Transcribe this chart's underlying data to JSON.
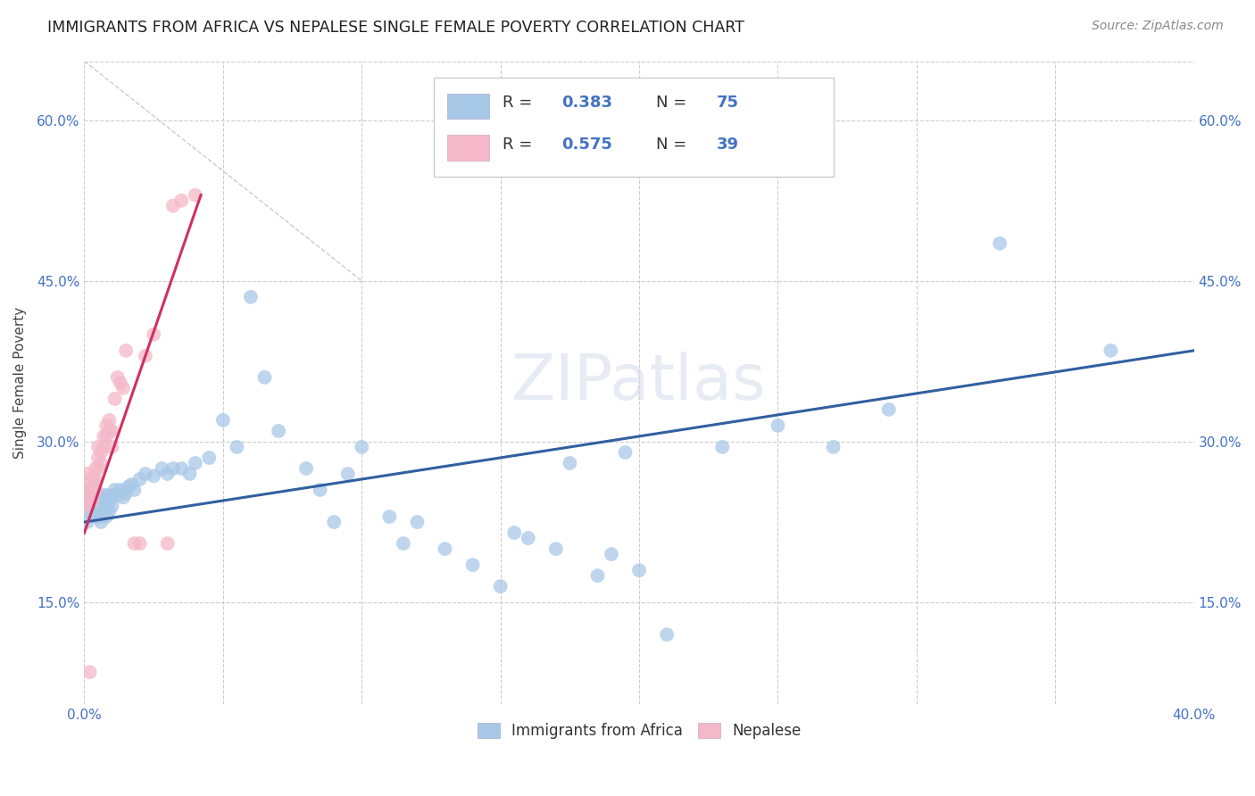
{
  "title": "IMMIGRANTS FROM AFRICA VS NEPALESE SINGLE FEMALE POVERTY CORRELATION CHART",
  "source": "Source: ZipAtlas.com",
  "ylabel": "Single Female Poverty",
  "xlim": [
    0.0,
    0.4
  ],
  "ylim": [
    0.055,
    0.655
  ],
  "xticks": [
    0.0,
    0.05,
    0.1,
    0.15,
    0.2,
    0.25,
    0.3,
    0.35,
    0.4
  ],
  "xticklabels": [
    "0.0%",
    "",
    "",
    "",
    "",
    "",
    "",
    "",
    "40.0%"
  ],
  "yticks": [
    0.15,
    0.3,
    0.45,
    0.6
  ],
  "yticklabels": [
    "15.0%",
    "30.0%",
    "45.0%",
    "60.0%"
  ],
  "legend_labels": [
    "Immigrants from Africa",
    "Nepalese"
  ],
  "R_blue": "0.383",
  "N_blue": "75",
  "R_pink": "0.575",
  "N_pink": "39",
  "blue_color": "#a8c8e8",
  "pink_color": "#f4b8c8",
  "blue_line_color": "#3060a0",
  "pink_line_color": "#d03060",
  "gray_line_color": "#cccccc",
  "watermark": "ZIPatlas",
  "tick_color": "#4472c4",
  "grid_color": "#cccccc",
  "blue_x": [
    0.001,
    0.001,
    0.002,
    0.002,
    0.002,
    0.003,
    0.003,
    0.003,
    0.004,
    0.004,
    0.004,
    0.005,
    0.005,
    0.005,
    0.006,
    0.006,
    0.006,
    0.007,
    0.007,
    0.008,
    0.008,
    0.008,
    0.009,
    0.009,
    0.01,
    0.01,
    0.011,
    0.012,
    0.013,
    0.014,
    0.015,
    0.016,
    0.017,
    0.018,
    0.02,
    0.022,
    0.025,
    0.028,
    0.03,
    0.032,
    0.035,
    0.038,
    0.04,
    0.045,
    0.05,
    0.055,
    0.06,
    0.065,
    0.07,
    0.08,
    0.085,
    0.09,
    0.095,
    0.1,
    0.11,
    0.115,
    0.12,
    0.13,
    0.14,
    0.15,
    0.155,
    0.16,
    0.17,
    0.175,
    0.185,
    0.19,
    0.195,
    0.2,
    0.21,
    0.23,
    0.25,
    0.27,
    0.29,
    0.33,
    0.37
  ],
  "blue_y": [
    0.24,
    0.225,
    0.235,
    0.245,
    0.255,
    0.23,
    0.24,
    0.25,
    0.235,
    0.245,
    0.255,
    0.23,
    0.24,
    0.25,
    0.225,
    0.235,
    0.245,
    0.24,
    0.25,
    0.23,
    0.24,
    0.25,
    0.235,
    0.245,
    0.24,
    0.25,
    0.255,
    0.25,
    0.255,
    0.248,
    0.252,
    0.258,
    0.26,
    0.255,
    0.265,
    0.27,
    0.268,
    0.275,
    0.27,
    0.275,
    0.275,
    0.27,
    0.28,
    0.285,
    0.32,
    0.295,
    0.435,
    0.36,
    0.31,
    0.275,
    0.255,
    0.225,
    0.27,
    0.295,
    0.23,
    0.205,
    0.225,
    0.2,
    0.185,
    0.165,
    0.215,
    0.21,
    0.2,
    0.28,
    0.175,
    0.195,
    0.29,
    0.18,
    0.12,
    0.295,
    0.315,
    0.295,
    0.33,
    0.485,
    0.385
  ],
  "pink_x": [
    0.001,
    0.001,
    0.001,
    0.002,
    0.002,
    0.002,
    0.003,
    0.003,
    0.003,
    0.004,
    0.004,
    0.004,
    0.005,
    0.005,
    0.005,
    0.006,
    0.006,
    0.007,
    0.007,
    0.008,
    0.008,
    0.009,
    0.009,
    0.01,
    0.01,
    0.011,
    0.012,
    0.013,
    0.014,
    0.015,
    0.018,
    0.02,
    0.022,
    0.025,
    0.03,
    0.032,
    0.035,
    0.04,
    0.002
  ],
  "pink_y": [
    0.24,
    0.255,
    0.27,
    0.245,
    0.255,
    0.265,
    0.245,
    0.255,
    0.265,
    0.255,
    0.265,
    0.275,
    0.275,
    0.285,
    0.295,
    0.28,
    0.29,
    0.295,
    0.305,
    0.305,
    0.315,
    0.31,
    0.32,
    0.295,
    0.31,
    0.34,
    0.36,
    0.355,
    0.35,
    0.385,
    0.205,
    0.205,
    0.38,
    0.4,
    0.205,
    0.52,
    0.525,
    0.53,
    0.085
  ],
  "blue_line_x": [
    0.0,
    0.4
  ],
  "blue_line_y": [
    0.225,
    0.385
  ],
  "pink_line_x": [
    0.0,
    0.042
  ],
  "pink_line_y": [
    0.215,
    0.53
  ]
}
